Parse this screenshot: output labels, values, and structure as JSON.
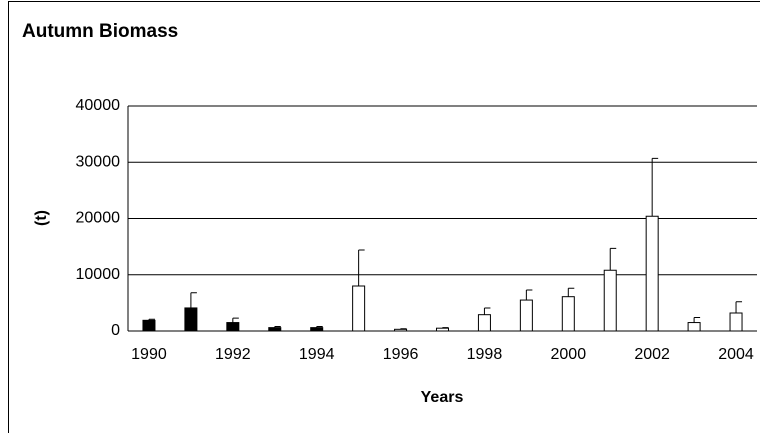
{
  "chart_data": {
    "type": "bar",
    "title": "Autumn Biomass",
    "y_label": "(t)",
    "x_label": "Years",
    "categories": [
      "1990",
      null,
      "1992",
      null,
      "1994",
      null,
      "1996",
      null,
      "1998",
      null,
      "2000",
      null,
      "2002",
      null,
      "2004"
    ],
    "values": [
      1900,
      4100,
      1500,
      600,
      600,
      8000,
      300,
      500,
      2900,
      5500,
      6100,
      10800,
      20400,
      1500,
      3200
    ],
    "errors": [
      200,
      2700,
      800,
      200,
      200,
      6400,
      100,
      100,
      1200,
      1800,
      1500,
      3900,
      10300,
      900,
      2000
    ],
    "colors": [
      "#000000",
      "#000000",
      "#000000",
      "#000000",
      "#000000",
      "#ffffff",
      "#ffffff",
      "#ffffff",
      "#ffffff",
      "#ffffff",
      "#ffffff",
      "#ffffff",
      "#ffffff",
      "#ffffff",
      "#ffffff"
    ],
    "ylim": [
      0,
      40000
    ],
    "yticks": [
      0,
      10000,
      20000,
      30000,
      40000
    ],
    "grid": true
  }
}
